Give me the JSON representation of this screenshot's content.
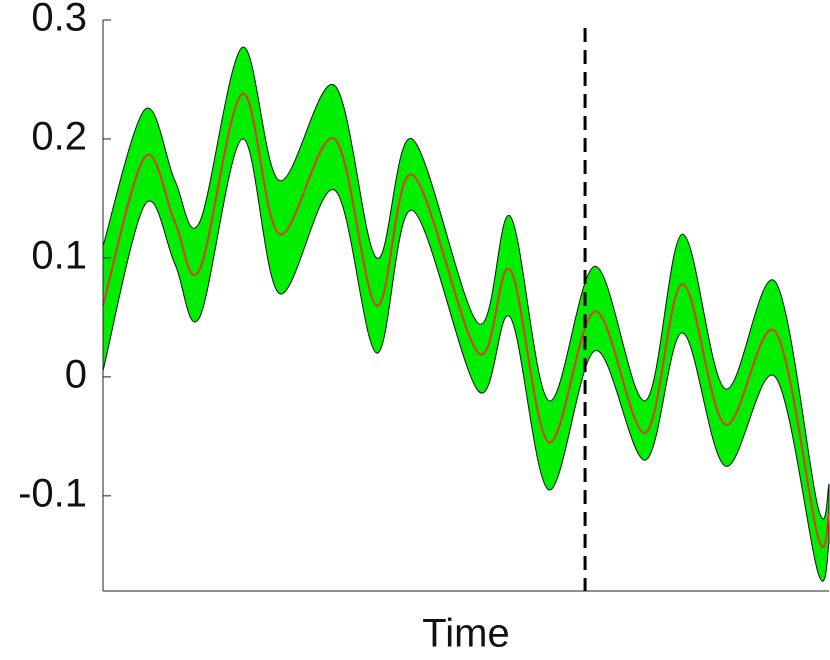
{
  "chart_data": {
    "type": "line",
    "xlabel": "Time",
    "x": [
      0,
      5.8,
      9.9,
      13.3,
      19.2,
      24.3,
      31.9,
      37.7,
      42.6,
      51.7,
      56.1,
      61.4,
      67.8,
      74.7,
      79.8,
      85.7,
      92.6,
      98.5,
      100
    ],
    "values": [
      0.06,
      0.185,
      0.13,
      0.09,
      0.238,
      0.12,
      0.2,
      0.06,
      0.17,
      0.02,
      0.09,
      -0.055,
      0.055,
      -0.047,
      0.078,
      -0.04,
      0.038,
      -0.135,
      -0.115
    ],
    "upper": [
      0.11,
      0.225,
      0.165,
      0.13,
      0.277,
      0.165,
      0.245,
      0.1,
      0.2,
      0.045,
      0.135,
      -0.02,
      0.093,
      -0.02,
      0.12,
      -0.01,
      0.08,
      -0.11,
      -0.09
    ],
    "lower": [
      0.005,
      0.145,
      0.095,
      0.05,
      0.2,
      0.07,
      0.157,
      0.02,
      0.14,
      -0.012,
      0.05,
      -0.095,
      0.022,
      -0.07,
      0.037,
      -0.075,
      0.0,
      -0.165,
      -0.14
    ],
    "color": "#e03a2a",
    "band_color": "#00ee00",
    "xlim": [
      0,
      100
    ],
    "ylim": [
      -0.18,
      0.3
    ],
    "yticks": [
      -0.1,
      0,
      0.1,
      0.2,
      0.3
    ],
    "vline_x": 66.4
  }
}
